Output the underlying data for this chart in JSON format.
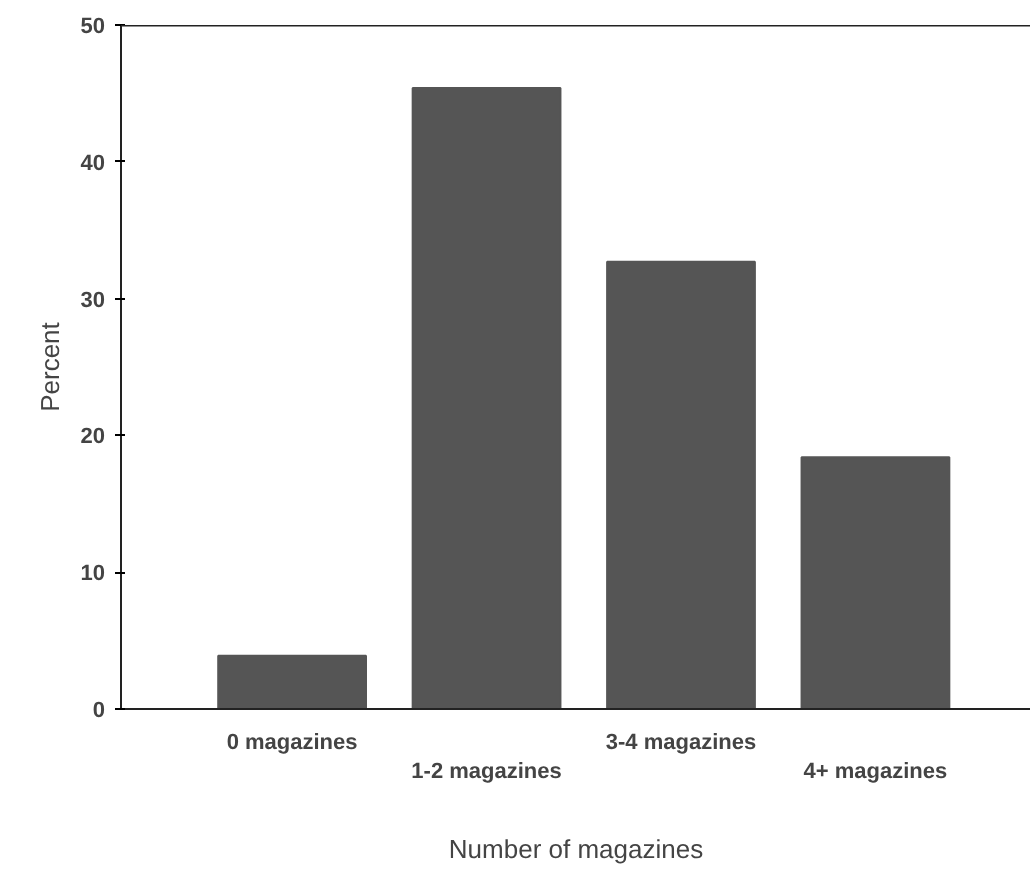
{
  "chart_data": {
    "type": "bar",
    "xlabel": "Number of magazines",
    "ylabel": "Percent",
    "categories": [
      "0 magazines",
      "1-2 magazines",
      "3-4 magazines",
      "4+ magazines"
    ],
    "values": [
      3.9,
      45.4,
      32.7,
      18.4
    ],
    "color": "#555555",
    "ylim": [
      0,
      50
    ],
    "yticks": [
      0,
      10,
      20,
      30,
      40,
      50
    ],
    "grid": false
  }
}
